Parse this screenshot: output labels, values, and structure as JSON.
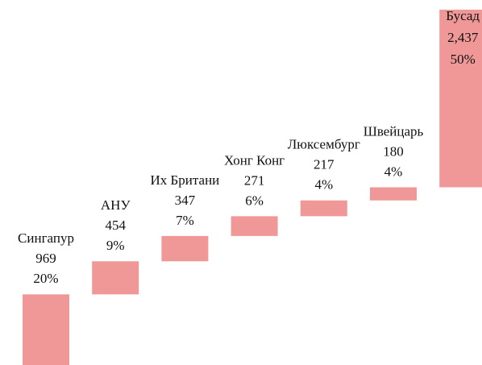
{
  "chart_data": {
    "type": "waterfall",
    "categories": [
      "Сингапур",
      "АНУ",
      "Их Британи",
      "Хонг Конг",
      "Люксембург",
      "Швейцарь",
      "Бусад"
    ],
    "values": [
      969,
      454,
      347,
      271,
      217,
      180,
      2437
    ],
    "value_labels": [
      "969",
      "454",
      "347",
      "271",
      "217",
      "180",
      "2,437"
    ],
    "share_labels": [
      "20%",
      "9%",
      "7%",
      "6%",
      "4%",
      "4%",
      "50%"
    ],
    "color": "#f09898"
  }
}
